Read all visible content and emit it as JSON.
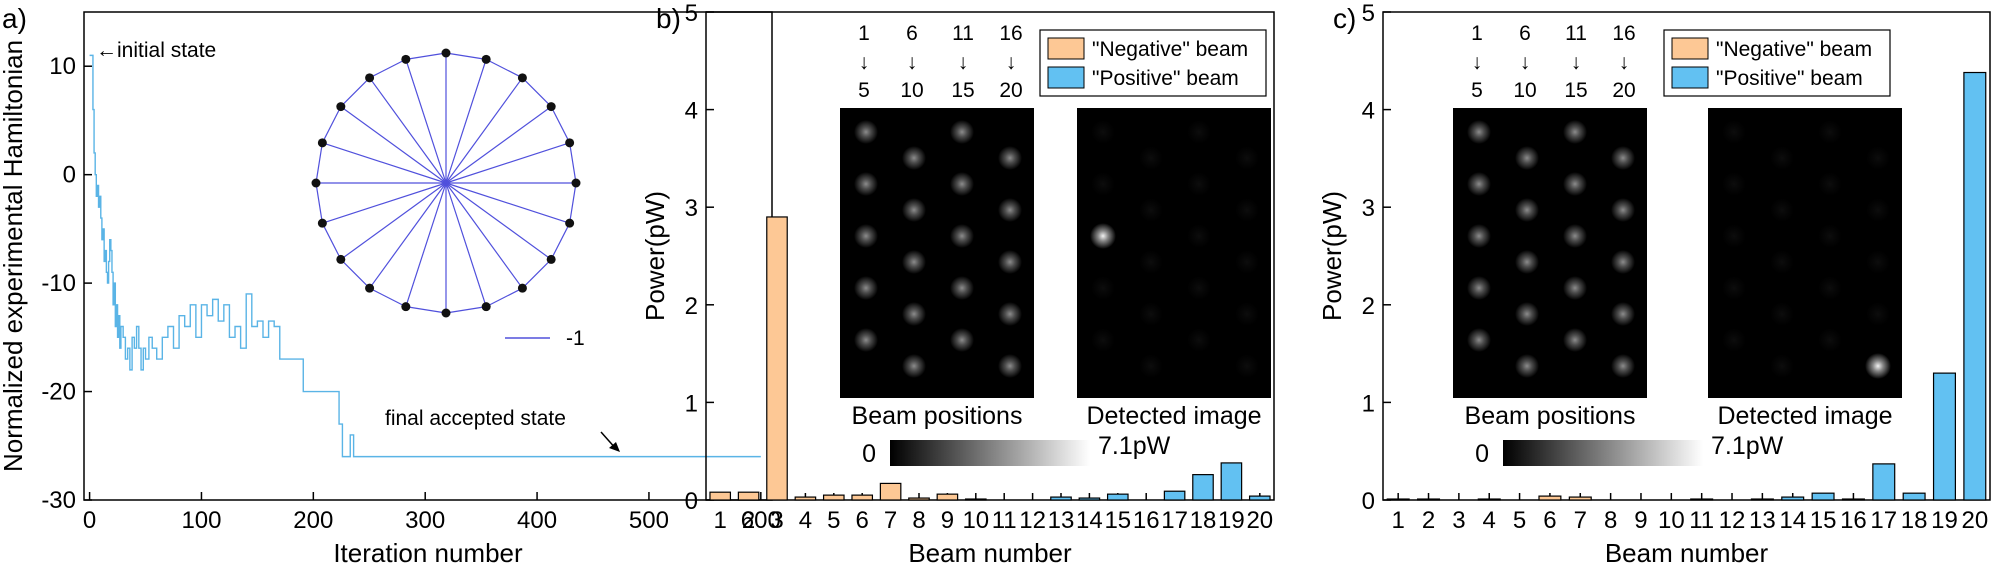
{
  "chart_data": [
    {
      "type": "line",
      "panel_label": "a)",
      "xlabel": "Iteration number",
      "ylabel": "Normalized experimental Hamiltonian",
      "xlim": [
        -5,
        610
      ],
      "ylim": [
        -30,
        15
      ],
      "x_ticks": [
        0,
        100,
        200,
        300,
        400,
        500,
        600
      ],
      "y_ticks": [
        -30,
        -20,
        -10,
        0,
        10
      ],
      "line_color": "#5ab4e6",
      "series": [
        {
          "x": [
            0,
            3,
            4,
            5,
            6,
            7,
            8,
            9,
            10,
            11,
            12,
            13,
            14,
            15,
            16,
            17,
            18,
            19,
            20,
            21,
            22,
            23,
            24,
            25,
            26,
            27,
            28,
            30,
            32,
            34,
            36,
            38,
            40,
            42,
            44,
            46,
            48,
            50,
            53,
            56,
            60,
            65,
            70,
            75,
            80,
            85,
            90,
            95,
            100,
            105,
            110,
            115,
            120,
            125,
            130,
            135,
            140,
            145,
            150,
            155,
            160,
            165,
            170,
            190,
            191,
            220,
            223,
            225,
            226,
            232,
            233,
            236,
            600
          ],
          "y": [
            11,
            6,
            2,
            0,
            -2,
            -1,
            -3,
            -2,
            -4,
            -6,
            -5,
            -8,
            -7,
            -9,
            -10,
            -8,
            -6,
            -7,
            -9,
            -12,
            -10,
            -14,
            -12,
            -15,
            -13,
            -16,
            -14,
            -15,
            -17,
            -16,
            -18,
            -15,
            -16,
            -14,
            -16,
            -18,
            -16,
            -17,
            -15,
            -16,
            -17,
            -15,
            -14,
            -16,
            -13,
            -14,
            -12,
            -15,
            -12,
            -13,
            -11.5,
            -13.5,
            -12,
            -15,
            -14,
            -16,
            -11,
            -14,
            -13.5,
            -15,
            -13.5,
            -14,
            -17,
            -17,
            -20,
            -20,
            -23,
            -23,
            -26,
            -26,
            -24,
            -26,
            -26
          ]
        }
      ],
      "annotations": [
        "←initial state",
        "final accepted state"
      ],
      "inset": {
        "type": "graph",
        "node_count": 20,
        "legend": "-1",
        "edge_color": "#5050dc"
      }
    },
    {
      "type": "bar",
      "panel_label": "b)",
      "xlabel": "Beam number",
      "ylabel": "Power(pW)",
      "ylim": [
        0,
        5
      ],
      "y_ticks": [
        0,
        1,
        2,
        3,
        4,
        5
      ],
      "categories": [
        "1",
        "2",
        "3",
        "4",
        "5",
        "6",
        "7",
        "8",
        "9",
        "10",
        "11",
        "12",
        "13",
        "14",
        "15",
        "16",
        "17",
        "18",
        "19",
        "20"
      ],
      "series": [
        {
          "name": "\"Negative\" beam",
          "color": "#fdc895",
          "values": [
            0.08,
            0.08,
            2.9,
            0.03,
            0.05,
            0.05,
            0.17,
            0.02,
            0.06,
            0.01,
            0,
            0,
            0,
            0,
            0,
            0,
            0,
            0,
            0,
            0
          ]
        },
        {
          "name": "\"Positive\" beam",
          "color": "#62c1f2",
          "values": [
            0,
            0,
            0,
            0,
            0,
            0,
            0,
            0,
            0,
            0,
            0,
            0,
            0.03,
            0.02,
            0.06,
            0,
            0.09,
            0.26,
            0.38,
            0.04
          ]
        }
      ],
      "legend_position": "top-right",
      "inset_beam_columns": {
        "top": [
          "1",
          "6",
          "11",
          "16"
        ],
        "arrows": [
          "↓",
          "↓",
          "↓",
          "↓"
        ],
        "bottom": [
          "5",
          "10",
          "15",
          "20"
        ]
      },
      "image_labels": [
        "Beam positions",
        "Detected image"
      ],
      "colorbar": {
        "min_label": "0",
        "max_label": "7.1pW"
      },
      "detected_bright_beam": 3
    },
    {
      "type": "bar",
      "panel_label": "c)",
      "xlabel": "Beam number",
      "ylabel": "Power(pW)",
      "ylim": [
        0,
        5
      ],
      "y_ticks": [
        0,
        1,
        2,
        3,
        4,
        5
      ],
      "categories": [
        "1",
        "2",
        "3",
        "4",
        "5",
        "6",
        "7",
        "8",
        "9",
        "10",
        "11",
        "12",
        "13",
        "14",
        "15",
        "16",
        "17",
        "18",
        "19",
        "20"
      ],
      "series": [
        {
          "name": "\"Negative\" beam",
          "color": "#fdc895",
          "values": [
            0.01,
            0.01,
            0,
            0.01,
            0,
            0.04,
            0.03,
            0,
            0,
            0,
            0,
            0,
            0,
            0,
            0,
            0,
            0,
            0,
            0,
            0
          ]
        },
        {
          "name": "\"Positive\" beam",
          "color": "#62c1f2",
          "values": [
            0,
            0,
            0,
            0,
            0,
            0,
            0,
            0,
            0,
            0,
            0.01,
            0,
            0.01,
            0.03,
            0.07,
            0.01,
            0.37,
            0.07,
            1.3,
            4.38
          ]
        }
      ],
      "legend_position": "top-right",
      "inset_beam_columns": {
        "top": [
          "1",
          "6",
          "11",
          "16"
        ],
        "arrows": [
          "↓",
          "↓",
          "↓",
          "↓"
        ],
        "bottom": [
          "5",
          "10",
          "15",
          "20"
        ]
      },
      "image_labels": [
        "Beam positions",
        "Detected image"
      ],
      "colorbar": {
        "min_label": "0",
        "max_label": "7.1pW"
      },
      "detected_bright_beam": 20
    }
  ]
}
